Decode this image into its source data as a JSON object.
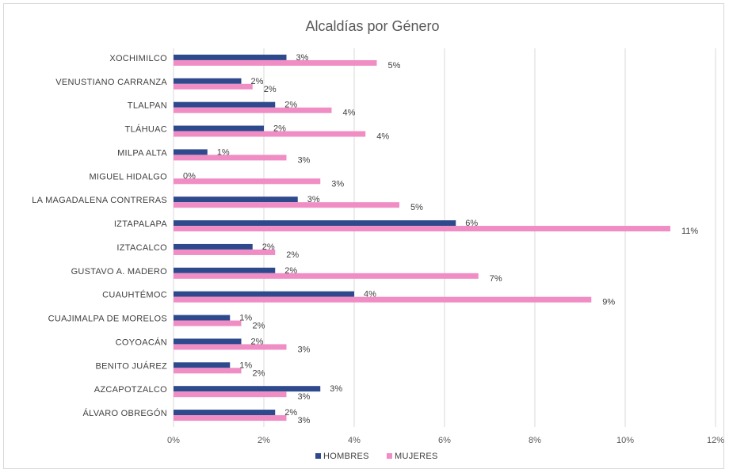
{
  "chart_data": {
    "type": "bar",
    "orientation": "horizontal",
    "title": "Alcaldías por Género",
    "categories": [
      "XOCHIMILCO",
      "VENUSTIANO CARRANZA",
      "TLALPAN",
      "TLÁHUAC",
      "MILPA ALTA",
      "MIGUEL HIDALGO",
      "LA MAGADALENA CONTRERAS",
      "IZTAPALAPA",
      "IZTACALCO",
      "GUSTAVO A. MADERO",
      "CUAUHTÉMOC",
      "CUAJIMALPA DE MORELOS",
      "COYOACÁN",
      "BENITO JUÁREZ",
      "AZCAPOTZALCO",
      "ÁLVARO OBREGÓN"
    ],
    "series": [
      {
        "name": "HOMBRES",
        "color": "#2e4a8c",
        "values": [
          2.5,
          1.5,
          2.25,
          2.0,
          0.75,
          0.0,
          2.75,
          6.25,
          1.75,
          2.25,
          4.0,
          1.25,
          1.5,
          1.25,
          3.25,
          2.25
        ],
        "labels": [
          "3%",
          "2%",
          "2%",
          "2%",
          "1%",
          "0%",
          "3%",
          "6%",
          "2%",
          "2%",
          "4%",
          "1%",
          "2%",
          "1%",
          "3%",
          "2%"
        ]
      },
      {
        "name": "MUJERES",
        "color": "#f08dc4",
        "values": [
          4.5,
          1.75,
          3.5,
          4.25,
          2.5,
          3.25,
          5.0,
          11.0,
          2.25,
          6.75,
          9.25,
          1.5,
          2.5,
          1.5,
          2.5,
          2.5
        ],
        "labels": [
          "5%",
          "2%",
          "4%",
          "4%",
          "3%",
          "3%",
          "5%",
          "11%",
          "2%",
          "7%",
          "9%",
          "2%",
          "3%",
          "2%",
          "3%",
          "3%"
        ]
      }
    ],
    "xlim": [
      0,
      12
    ],
    "x_ticks": [
      "0%",
      "2%",
      "4%",
      "6%",
      "8%",
      "10%",
      "12%"
    ],
    "xlabel": "",
    "ylabel": "",
    "grid": true,
    "legend_position": "bottom"
  }
}
